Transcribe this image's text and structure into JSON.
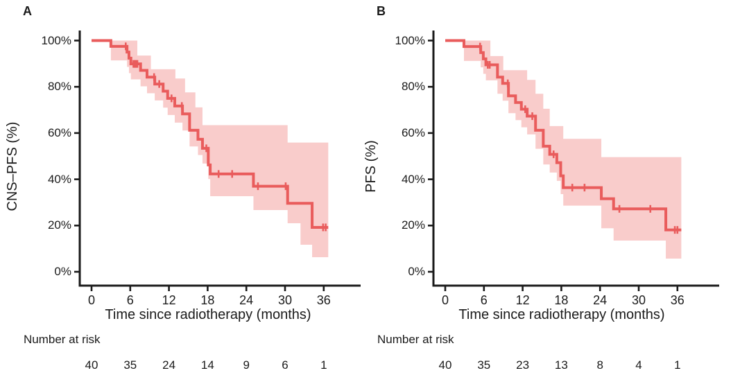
{
  "colors": {
    "curve": "#E95C5C",
    "band": "#F9CCCB",
    "axis": "#1A1A1A",
    "text": "#1A1A1A"
  },
  "chart_data": [
    {
      "type": "line",
      "subtype": "kaplan-meier-step",
      "panel_label": "A",
      "ylabel": "CNS–PFS (%)",
      "xlabel": "Time since radiotherapy (months)",
      "xlim": [
        0,
        38
      ],
      "ylim": [
        0,
        100
      ],
      "grid": "off",
      "xtick_values": [
        0,
        6,
        12,
        18,
        24,
        30,
        36
      ],
      "xtick_labels": [
        "0",
        "6",
        "12",
        "18",
        "24",
        "30",
        "36"
      ],
      "ytick_values": [
        100,
        80,
        60,
        40,
        20,
        0
      ],
      "ytick_labels": [
        "100%",
        "80%",
        "60%",
        "40%",
        "20%",
        "0%"
      ],
      "end_time": 36.7,
      "km_steps": [
        [
          0,
          100
        ],
        [
          3,
          97.5
        ],
        [
          5.5,
          95
        ],
        [
          5.8,
          92.4
        ],
        [
          6.1,
          89.9
        ],
        [
          7.6,
          87.1
        ],
        [
          8.6,
          84.2
        ],
        [
          9.8,
          81.2
        ],
        [
          11.1,
          78.1
        ],
        [
          11.8,
          75
        ],
        [
          12.9,
          71.7
        ],
        [
          14.1,
          68.3
        ],
        [
          15.2,
          61.2
        ],
        [
          16.5,
          57.3
        ],
        [
          17.2,
          53.4
        ],
        [
          18.1,
          46.2
        ],
        [
          18.4,
          42.3
        ],
        [
          25.1,
          37
        ],
        [
          30.4,
          29.6
        ],
        [
          34.2,
          19.2
        ]
      ],
      "censors": [
        [
          5.3,
          97.5
        ],
        [
          6.5,
          89.9
        ],
        [
          6.7,
          89.9
        ],
        [
          6.9,
          89.9
        ],
        [
          7.1,
          89.9
        ],
        [
          9.7,
          84.2
        ],
        [
          10.5,
          81.2
        ],
        [
          12.4,
          75
        ],
        [
          14,
          71.7
        ],
        [
          17.8,
          53.4
        ],
        [
          19.7,
          42.3
        ],
        [
          21.8,
          42.3
        ],
        [
          25.8,
          37
        ],
        [
          30.1,
          37
        ],
        [
          35.9,
          19.2
        ],
        [
          36.3,
          19.2
        ]
      ],
      "ci_upper": [
        [
          0,
          100
        ],
        [
          7.1,
          93.5
        ],
        [
          9.2,
          87.6
        ],
        [
          13,
          83.6
        ],
        [
          14.5,
          77.6
        ],
        [
          16.1,
          71.1
        ],
        [
          17.2,
          63.4
        ],
        [
          30.4,
          55.9
        ]
      ],
      "ci_lower": [
        [
          0,
          100
        ],
        [
          3,
          91.4
        ],
        [
          5.5,
          88.6
        ],
        [
          5.8,
          85.9
        ],
        [
          6.1,
          83.2
        ],
        [
          7.6,
          80.2
        ],
        [
          8.6,
          77.2
        ],
        [
          9.8,
          74.1
        ],
        [
          11.1,
          71
        ],
        [
          11.8,
          67.8
        ],
        [
          12.9,
          64.5
        ],
        [
          14.1,
          61.1
        ],
        [
          15.2,
          54.2
        ],
        [
          16.5,
          50.5
        ],
        [
          17.2,
          46.8
        ],
        [
          18.1,
          40.1
        ],
        [
          18.4,
          32.7
        ],
        [
          25.1,
          26.7
        ],
        [
          30.4,
          21
        ],
        [
          32.4,
          11.7
        ],
        [
          34.2,
          6.3
        ]
      ],
      "number_at_risk": {
        "label": "Number at risk",
        "times": [
          0,
          6,
          12,
          18,
          24,
          30,
          36
        ],
        "values": [
          "40",
          "35",
          "24",
          "14",
          "9",
          "6",
          "1"
        ]
      }
    },
    {
      "type": "line",
      "subtype": "kaplan-meier-step",
      "panel_label": "B",
      "ylabel": "PFS (%)",
      "xlabel": "Time since radiotherapy (months)",
      "xlim": [
        0,
        38
      ],
      "ylim": [
        0,
        100
      ],
      "grid": "off",
      "xtick_values": [
        0,
        6,
        12,
        18,
        24,
        30,
        36
      ],
      "xtick_labels": [
        "0",
        "6",
        "12",
        "18",
        "24",
        "30",
        "36"
      ],
      "ytick_values": [
        100,
        80,
        60,
        40,
        20,
        0
      ],
      "ytick_labels": [
        "100%",
        "80%",
        "60%",
        "40%",
        "20%",
        "0%"
      ],
      "end_time": 36.6,
      "km_steps": [
        [
          0,
          100
        ],
        [
          2.9,
          97.4
        ],
        [
          5.5,
          94.8
        ],
        [
          5.9,
          92.1
        ],
        [
          6.3,
          89.5
        ],
        [
          8.1,
          84.2
        ],
        [
          8.9,
          81.5
        ],
        [
          9.8,
          76.1
        ],
        [
          10.9,
          73.2
        ],
        [
          11.8,
          70.3
        ],
        [
          12.7,
          67.3
        ],
        [
          14,
          61.2
        ],
        [
          15.2,
          54.3
        ],
        [
          16.2,
          50.8
        ],
        [
          17.3,
          47.2
        ],
        [
          17.9,
          41.5
        ],
        [
          18.3,
          36.4
        ],
        [
          24.2,
          31.6
        ],
        [
          26.1,
          27.2
        ],
        [
          34.2,
          18.1
        ]
      ],
      "censors": [
        [
          5.4,
          97.4
        ],
        [
          6.6,
          89.5
        ],
        [
          6.9,
          89.5
        ],
        [
          9.7,
          81.5
        ],
        [
          12.4,
          70.3
        ],
        [
          13.5,
          67.3
        ],
        [
          16.8,
          50.8
        ],
        [
          19.7,
          36.4
        ],
        [
          21.6,
          36.4
        ],
        [
          27,
          27.2
        ],
        [
          31.8,
          27.2
        ],
        [
          35.6,
          18.1
        ],
        [
          36,
          18.1
        ]
      ],
      "ci_upper": [
        [
          0,
          100
        ],
        [
          7,
          93.3
        ],
        [
          9,
          87.2
        ],
        [
          12.7,
          83
        ],
        [
          14,
          77
        ],
        [
          15.2,
          70.5
        ],
        [
          16.2,
          63
        ],
        [
          18.3,
          57.5
        ],
        [
          24.2,
          49.6
        ]
      ],
      "ci_lower": [
        [
          0,
          100
        ],
        [
          2.9,
          91.2
        ],
        [
          5.5,
          88.4
        ],
        [
          5.9,
          85.6
        ],
        [
          6.3,
          82.8
        ],
        [
          8.1,
          77
        ],
        [
          8.9,
          74
        ],
        [
          9.8,
          68.6
        ],
        [
          10.9,
          65.6
        ],
        [
          11.8,
          62.5
        ],
        [
          12.7,
          59.4
        ],
        [
          14,
          53.2
        ],
        [
          15.2,
          46.4
        ],
        [
          16.2,
          42.9
        ],
        [
          17.3,
          39.3
        ],
        [
          17.9,
          33.6
        ],
        [
          18.3,
          28.6
        ],
        [
          24.2,
          18.8
        ],
        [
          26.1,
          13.5
        ],
        [
          34.2,
          5.7
        ]
      ],
      "number_at_risk": {
        "label": "Number at risk",
        "times": [
          0,
          6,
          12,
          18,
          24,
          30,
          36
        ],
        "values": [
          "40",
          "35",
          "23",
          "13",
          "8",
          "4",
          "1"
        ]
      }
    }
  ]
}
